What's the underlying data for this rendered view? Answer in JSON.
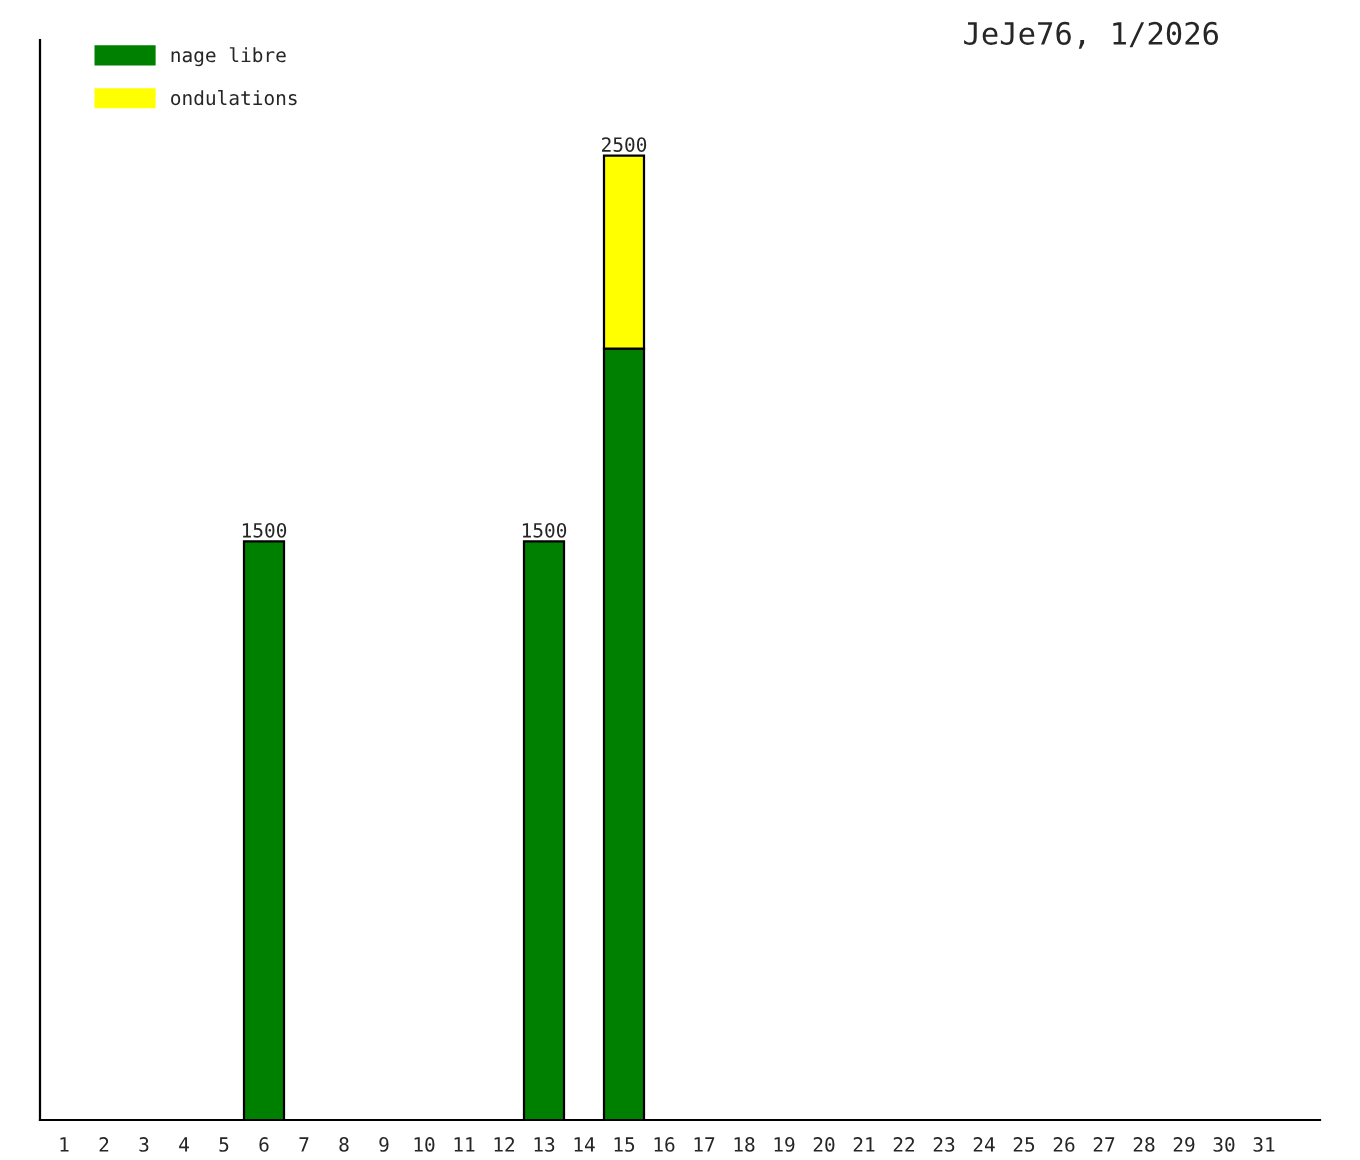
{
  "chart_data": {
    "type": "bar",
    "title": "JeJe76, 1/2026",
    "categories": [
      "1",
      "2",
      "3",
      "4",
      "5",
      "6",
      "7",
      "8",
      "9",
      "10",
      "11",
      "12",
      "13",
      "14",
      "15",
      "16",
      "17",
      "18",
      "19",
      "20",
      "21",
      "22",
      "23",
      "24",
      "25",
      "26",
      "27",
      "28",
      "29",
      "30",
      "31"
    ],
    "stacked": true,
    "series": [
      {
        "name": "nage libre",
        "color": "#008000",
        "values": [
          null,
          null,
          null,
          null,
          null,
          1500,
          null,
          null,
          null,
          null,
          null,
          null,
          1500,
          null,
          2000,
          null,
          null,
          null,
          null,
          null,
          null,
          null,
          null,
          null,
          null,
          null,
          null,
          null,
          null,
          null,
          null
        ],
        "value_labels": [
          null,
          null,
          null,
          null,
          null,
          "1500",
          null,
          null,
          null,
          null,
          null,
          null,
          "1500",
          null,
          null,
          null,
          null,
          null,
          null,
          null,
          null,
          null,
          null,
          null,
          null,
          null,
          null,
          null,
          null,
          null,
          null
        ]
      },
      {
        "name": "ondulations",
        "color": "#ffff00",
        "values": [
          null,
          null,
          null,
          null,
          null,
          null,
          null,
          null,
          null,
          null,
          null,
          null,
          null,
          null,
          500,
          null,
          null,
          null,
          null,
          null,
          null,
          null,
          null,
          null,
          null,
          null,
          null,
          null,
          null,
          null,
          null
        ]
      }
    ],
    "totals": [
      null,
      null,
      null,
      null,
      null,
      null,
      null,
      null,
      null,
      null,
      null,
      null,
      null,
      null,
      "2500",
      null,
      null,
      null,
      null,
      null,
      null,
      null,
      null,
      null,
      null,
      null,
      null,
      null,
      null,
      null,
      null
    ],
    "tick_labels": "x",
    "legend": "top left"
  }
}
